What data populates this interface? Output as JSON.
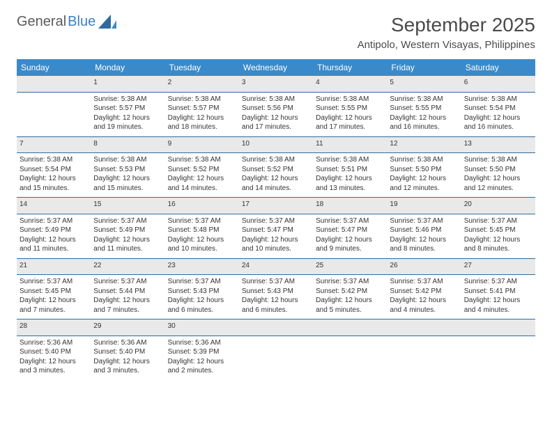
{
  "brand": {
    "part1": "General",
    "part2": "Blue"
  },
  "title": "September 2025",
  "location": "Antipolo, Western Visayas, Philippines",
  "theme": {
    "header_bg": "#3a8ac9",
    "header_fg": "#ffffff",
    "daynum_bg": "#e9e9e9",
    "rule_color": "#2f6aa0",
    "page_bg": "#ffffff",
    "text_color": "#333333",
    "title_color": "#4a4a4a",
    "logo_gray": "#5a5a5a",
    "logo_blue": "#3a7fc4",
    "title_fontsize_pt": 21,
    "location_fontsize_pt": 11,
    "header_fontsize_pt": 9,
    "cell_fontsize_pt": 7.5
  },
  "weekdays": [
    "Sunday",
    "Monday",
    "Tuesday",
    "Wednesday",
    "Thursday",
    "Friday",
    "Saturday"
  ],
  "weeks": [
    {
      "nums": [
        "",
        "1",
        "2",
        "3",
        "4",
        "5",
        "6"
      ],
      "cells": [
        null,
        {
          "sunrise": "Sunrise: 5:38 AM",
          "sunset": "Sunset: 5:57 PM",
          "d1": "Daylight: 12 hours",
          "d2": "and 19 minutes."
        },
        {
          "sunrise": "Sunrise: 5:38 AM",
          "sunset": "Sunset: 5:57 PM",
          "d1": "Daylight: 12 hours",
          "d2": "and 18 minutes."
        },
        {
          "sunrise": "Sunrise: 5:38 AM",
          "sunset": "Sunset: 5:56 PM",
          "d1": "Daylight: 12 hours",
          "d2": "and 17 minutes."
        },
        {
          "sunrise": "Sunrise: 5:38 AM",
          "sunset": "Sunset: 5:55 PM",
          "d1": "Daylight: 12 hours",
          "d2": "and 17 minutes."
        },
        {
          "sunrise": "Sunrise: 5:38 AM",
          "sunset": "Sunset: 5:55 PM",
          "d1": "Daylight: 12 hours",
          "d2": "and 16 minutes."
        },
        {
          "sunrise": "Sunrise: 5:38 AM",
          "sunset": "Sunset: 5:54 PM",
          "d1": "Daylight: 12 hours",
          "d2": "and 16 minutes."
        }
      ]
    },
    {
      "nums": [
        "7",
        "8",
        "9",
        "10",
        "11",
        "12",
        "13"
      ],
      "cells": [
        {
          "sunrise": "Sunrise: 5:38 AM",
          "sunset": "Sunset: 5:54 PM",
          "d1": "Daylight: 12 hours",
          "d2": "and 15 minutes."
        },
        {
          "sunrise": "Sunrise: 5:38 AM",
          "sunset": "Sunset: 5:53 PM",
          "d1": "Daylight: 12 hours",
          "d2": "and 15 minutes."
        },
        {
          "sunrise": "Sunrise: 5:38 AM",
          "sunset": "Sunset: 5:52 PM",
          "d1": "Daylight: 12 hours",
          "d2": "and 14 minutes."
        },
        {
          "sunrise": "Sunrise: 5:38 AM",
          "sunset": "Sunset: 5:52 PM",
          "d1": "Daylight: 12 hours",
          "d2": "and 14 minutes."
        },
        {
          "sunrise": "Sunrise: 5:38 AM",
          "sunset": "Sunset: 5:51 PM",
          "d1": "Daylight: 12 hours",
          "d2": "and 13 minutes."
        },
        {
          "sunrise": "Sunrise: 5:38 AM",
          "sunset": "Sunset: 5:50 PM",
          "d1": "Daylight: 12 hours",
          "d2": "and 12 minutes."
        },
        {
          "sunrise": "Sunrise: 5:38 AM",
          "sunset": "Sunset: 5:50 PM",
          "d1": "Daylight: 12 hours",
          "d2": "and 12 minutes."
        }
      ]
    },
    {
      "nums": [
        "14",
        "15",
        "16",
        "17",
        "18",
        "19",
        "20"
      ],
      "cells": [
        {
          "sunrise": "Sunrise: 5:37 AM",
          "sunset": "Sunset: 5:49 PM",
          "d1": "Daylight: 12 hours",
          "d2": "and 11 minutes."
        },
        {
          "sunrise": "Sunrise: 5:37 AM",
          "sunset": "Sunset: 5:49 PM",
          "d1": "Daylight: 12 hours",
          "d2": "and 11 minutes."
        },
        {
          "sunrise": "Sunrise: 5:37 AM",
          "sunset": "Sunset: 5:48 PM",
          "d1": "Daylight: 12 hours",
          "d2": "and 10 minutes."
        },
        {
          "sunrise": "Sunrise: 5:37 AM",
          "sunset": "Sunset: 5:47 PM",
          "d1": "Daylight: 12 hours",
          "d2": "and 10 minutes."
        },
        {
          "sunrise": "Sunrise: 5:37 AM",
          "sunset": "Sunset: 5:47 PM",
          "d1": "Daylight: 12 hours",
          "d2": "and 9 minutes."
        },
        {
          "sunrise": "Sunrise: 5:37 AM",
          "sunset": "Sunset: 5:46 PM",
          "d1": "Daylight: 12 hours",
          "d2": "and 8 minutes."
        },
        {
          "sunrise": "Sunrise: 5:37 AM",
          "sunset": "Sunset: 5:45 PM",
          "d1": "Daylight: 12 hours",
          "d2": "and 8 minutes."
        }
      ]
    },
    {
      "nums": [
        "21",
        "22",
        "23",
        "24",
        "25",
        "26",
        "27"
      ],
      "cells": [
        {
          "sunrise": "Sunrise: 5:37 AM",
          "sunset": "Sunset: 5:45 PM",
          "d1": "Daylight: 12 hours",
          "d2": "and 7 minutes."
        },
        {
          "sunrise": "Sunrise: 5:37 AM",
          "sunset": "Sunset: 5:44 PM",
          "d1": "Daylight: 12 hours",
          "d2": "and 7 minutes."
        },
        {
          "sunrise": "Sunrise: 5:37 AM",
          "sunset": "Sunset: 5:43 PM",
          "d1": "Daylight: 12 hours",
          "d2": "and 6 minutes."
        },
        {
          "sunrise": "Sunrise: 5:37 AM",
          "sunset": "Sunset: 5:43 PM",
          "d1": "Daylight: 12 hours",
          "d2": "and 6 minutes."
        },
        {
          "sunrise": "Sunrise: 5:37 AM",
          "sunset": "Sunset: 5:42 PM",
          "d1": "Daylight: 12 hours",
          "d2": "and 5 minutes."
        },
        {
          "sunrise": "Sunrise: 5:37 AM",
          "sunset": "Sunset: 5:42 PM",
          "d1": "Daylight: 12 hours",
          "d2": "and 4 minutes."
        },
        {
          "sunrise": "Sunrise: 5:37 AM",
          "sunset": "Sunset: 5:41 PM",
          "d1": "Daylight: 12 hours",
          "d2": "and 4 minutes."
        }
      ]
    },
    {
      "nums": [
        "28",
        "29",
        "30",
        "",
        "",
        "",
        ""
      ],
      "cells": [
        {
          "sunrise": "Sunrise: 5:36 AM",
          "sunset": "Sunset: 5:40 PM",
          "d1": "Daylight: 12 hours",
          "d2": "and 3 minutes."
        },
        {
          "sunrise": "Sunrise: 5:36 AM",
          "sunset": "Sunset: 5:40 PM",
          "d1": "Daylight: 12 hours",
          "d2": "and 3 minutes."
        },
        {
          "sunrise": "Sunrise: 5:36 AM",
          "sunset": "Sunset: 5:39 PM",
          "d1": "Daylight: 12 hours",
          "d2": "and 2 minutes."
        },
        null,
        null,
        null,
        null
      ]
    }
  ]
}
